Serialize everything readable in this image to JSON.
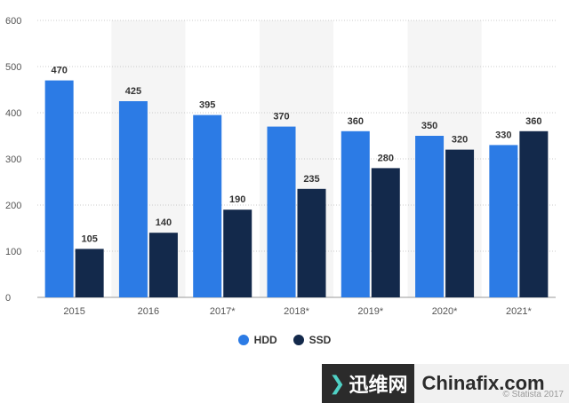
{
  "chart_data": {
    "type": "bar",
    "categories": [
      "2015",
      "2016",
      "2017*",
      "2018*",
      "2019*",
      "2020*",
      "2021*"
    ],
    "series": [
      {
        "name": "HDD",
        "color": "#2c7be5",
        "values": [
          470,
          425,
          395,
          370,
          360,
          350,
          330
        ]
      },
      {
        "name": "SSD",
        "color": "#13294b",
        "values": [
          105,
          140,
          190,
          235,
          280,
          320,
          360
        ]
      }
    ],
    "y_ticks": [
      0,
      100,
      200,
      300,
      400,
      500,
      600
    ],
    "ylim": [
      0,
      600
    ],
    "grid": true,
    "legend_position": "bottom"
  },
  "legend": [
    {
      "label": "HDD",
      "color": "#2c7be5"
    },
    {
      "label": "SSD",
      "color": "#13294b"
    }
  ],
  "watermark": {
    "brand": "迅维网",
    "site": "Chinafix.com",
    "source": "© Statista 2017"
  }
}
